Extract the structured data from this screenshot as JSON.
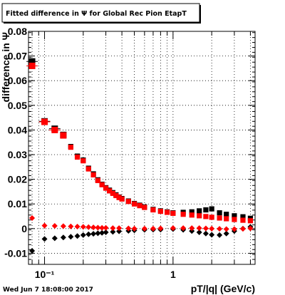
{
  "title": "Fitted difference in  Ψ  for Global Rec Pion EtapT",
  "footer": "Wed Jun  7 18:08:00 2017",
  "chart_data": {
    "type": "scatter",
    "title": "Fitted difference in  Ψ  for Global Rec Pion EtapT",
    "xlabel": "pT/|q| (GeV/c)",
    "ylabel": "difference in  Ψ",
    "xscale": "log",
    "xlim": [
      0.075,
      4.35
    ],
    "ylim": [
      -0.0145,
      0.08
    ],
    "grid": true,
    "x_ticks": [
      {
        "value": 0.1,
        "label": "10⁻¹"
      },
      {
        "value": 1,
        "label": "1"
      }
    ],
    "y_ticks": [
      -0.01,
      0,
      0.01,
      0.02,
      0.03,
      0.04,
      0.05,
      0.06,
      0.07,
      0.08
    ],
    "y_tick_labels": [
      "-0.01",
      "0",
      "0.01",
      "0.02",
      "0.03",
      "0.04",
      "0.05",
      "0.06",
      "0.07",
      "0.08"
    ],
    "colors": {
      "black_series": "#000000",
      "red_series": "#ff0000"
    },
    "series": [
      {
        "marker": "square",
        "color": "#000000",
        "x": [
          0.08,
          0.1,
          0.12,
          0.14,
          0.16,
          0.18,
          0.2,
          0.22,
          0.24,
          0.26,
          0.28,
          0.3,
          0.32,
          0.34,
          0.36,
          0.38,
          0.4,
          0.45,
          0.5,
          0.55,
          0.6,
          0.7,
          0.8,
          0.9,
          1.0,
          1.2,
          1.4,
          1.6,
          1.8,
          2.0,
          2.3,
          2.6,
          3.0,
          3.5,
          4.0
        ],
        "y": [
          0.0678,
          0.0435,
          0.0405,
          0.038,
          0.0333,
          0.0294,
          0.0278,
          0.0245,
          0.0222,
          0.0198,
          0.018,
          0.0166,
          0.0156,
          0.0146,
          0.0137,
          0.0128,
          0.0122,
          0.0112,
          0.0102,
          0.0095,
          0.0088,
          0.0078,
          0.0072,
          0.0068,
          0.0064,
          0.0066,
          0.0068,
          0.0072,
          0.0076,
          0.008,
          0.0064,
          0.0058,
          0.0052,
          0.0048,
          0.0042
        ]
      },
      {
        "marker": "square",
        "color": "#ff0000",
        "x": [
          0.08,
          0.1,
          0.12,
          0.14,
          0.16,
          0.18,
          0.2,
          0.22,
          0.24,
          0.26,
          0.28,
          0.3,
          0.32,
          0.34,
          0.36,
          0.38,
          0.4,
          0.45,
          0.5,
          0.55,
          0.6,
          0.7,
          0.8,
          0.9,
          1.0,
          1.2,
          1.4,
          1.6,
          1.8,
          2.0,
          2.3,
          2.6,
          3.0,
          3.5,
          4.0
        ],
        "y": [
          0.066,
          0.0433,
          0.04,
          0.0378,
          0.033,
          0.029,
          0.0275,
          0.0242,
          0.0218,
          0.0195,
          0.0178,
          0.0164,
          0.0153,
          0.0143,
          0.0134,
          0.0126,
          0.012,
          0.011,
          0.01,
          0.0093,
          0.0086,
          0.0076,
          0.007,
          0.0066,
          0.0062,
          0.0058,
          0.0055,
          0.0052,
          0.0049,
          0.0046,
          0.0043,
          0.004,
          0.0037,
          0.0034,
          0.0032
        ]
      },
      {
        "marker": "diamond",
        "color": "#000000",
        "x": [
          0.08,
          0.1,
          0.12,
          0.14,
          0.16,
          0.18,
          0.2,
          0.22,
          0.24,
          0.26,
          0.28,
          0.3,
          0.34,
          0.38,
          0.45,
          0.5,
          0.6,
          0.7,
          0.8,
          1.0,
          1.2,
          1.4,
          1.6,
          1.8,
          2.0,
          2.3,
          2.6,
          3.0,
          3.5,
          4.0
        ],
        "y": [
          -0.009,
          -0.0042,
          -0.0039,
          -0.0036,
          -0.0033,
          -0.003,
          -0.0026,
          -0.0023,
          -0.0021,
          -0.0019,
          -0.0017,
          -0.0015,
          -0.0013,
          -0.0011,
          -0.0009,
          -0.0007,
          -0.0005,
          -0.0004,
          -0.0004,
          -0.0002,
          -0.0005,
          -0.001,
          -0.0015,
          -0.002,
          -0.0025,
          -0.0026,
          -0.002,
          -0.001,
          0.0,
          0.0007
        ]
      },
      {
        "marker": "diamond",
        "color": "#ff0000",
        "x": [
          0.08,
          0.1,
          0.12,
          0.14,
          0.16,
          0.18,
          0.2,
          0.22,
          0.24,
          0.26,
          0.28,
          0.3,
          0.34,
          0.38,
          0.45,
          0.5,
          0.6,
          0.7,
          0.8,
          1.0,
          1.2,
          1.4,
          1.6,
          1.8,
          2.0,
          2.3,
          2.6,
          3.0,
          3.5,
          4.0
        ],
        "y": [
          0.0043,
          0.0012,
          0.0011,
          0.001,
          0.0009,
          0.0008,
          0.0007,
          0.0006,
          0.0005,
          0.0004,
          0.0003,
          0.0003,
          0.0002,
          0.0002,
          0.0001,
          0.0,
          0.0,
          0.0,
          0.0001,
          0.0002,
          0.0002,
          0.0002,
          0.0002,
          0.0001,
          0.0,
          -0.0001,
          -0.0002,
          -0.0002,
          -0.0001,
          0.0001
        ]
      }
    ]
  }
}
